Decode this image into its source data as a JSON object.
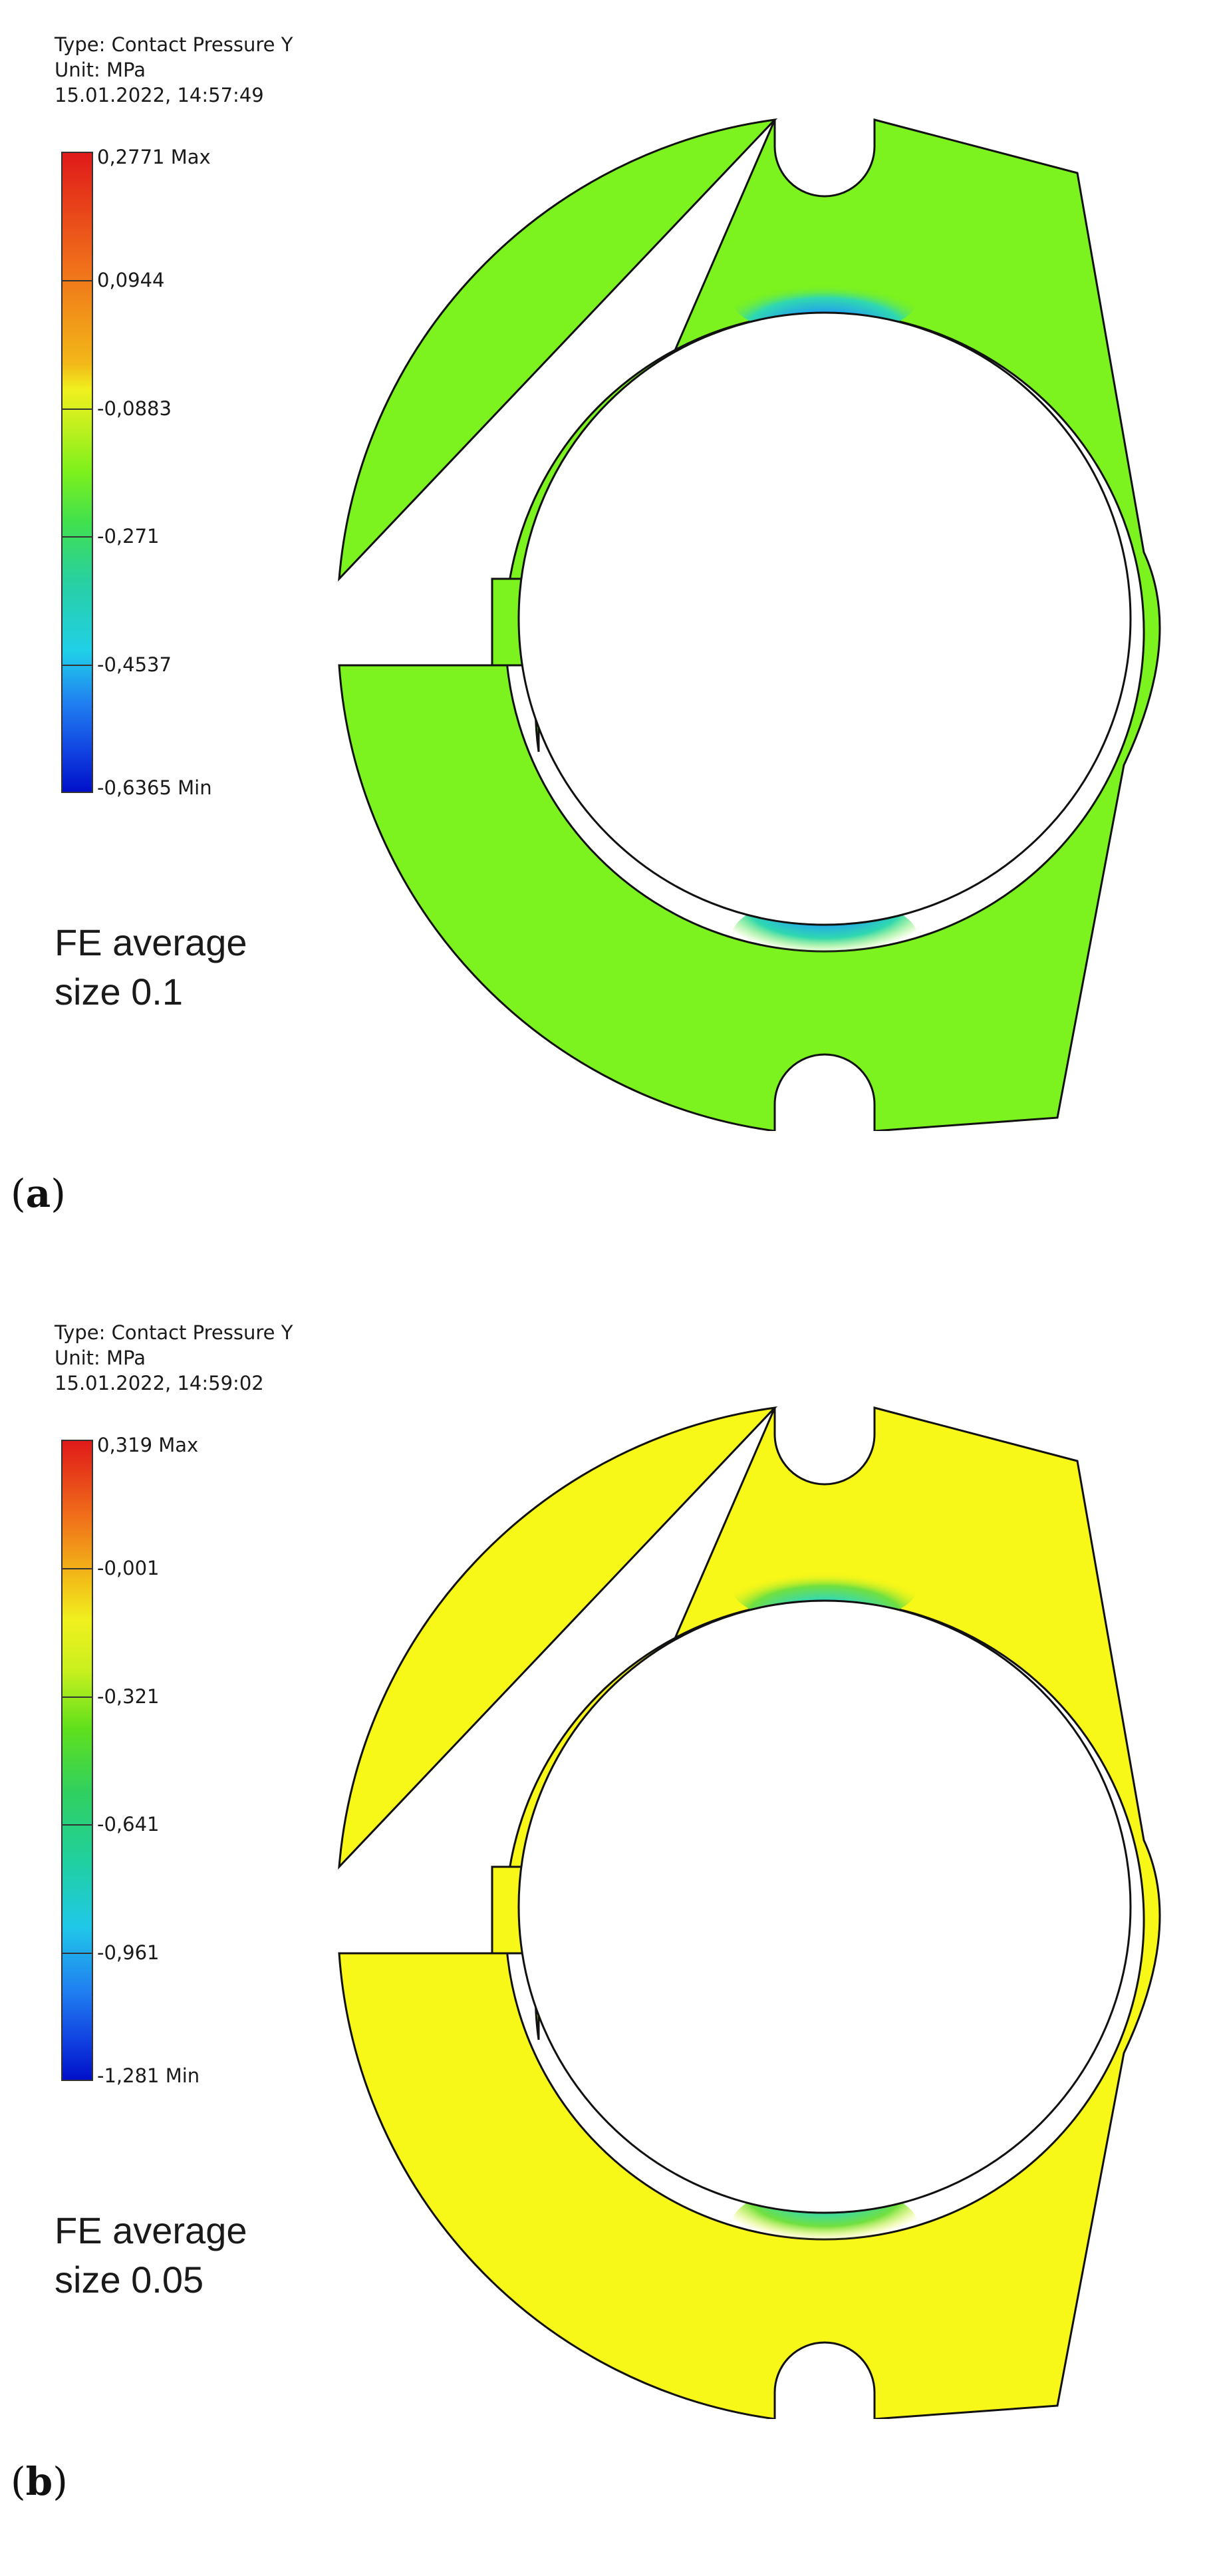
{
  "panels": [
    {
      "label_letter": "a",
      "legend": {
        "type_line": "Type: Contact Pressure Y",
        "unit_line": "Unit: MPa",
        "timestamp": "15.01.2022, 14:57:49",
        "ticks": [
          "0,2771 Max",
          "0,0944",
          "-0,0883",
          "-0,271",
          "-0,4537",
          "-0,6365 Min"
        ]
      },
      "fe_line1": "FE average",
      "fe_line2": "size 0.1",
      "body_color": "#7cf21e"
    },
    {
      "label_letter": "b",
      "legend": {
        "type_line": "Type: Contact Pressure Y",
        "unit_line": "Unit: MPa",
        "timestamp": "15.01.2022, 14:59:02",
        "ticks": [
          "0,319 Max",
          "-0,001",
          "-0,321",
          "-0,641",
          "-0,961",
          "-1,281 Min"
        ]
      },
      "fe_line1": "FE average",
      "fe_line2": "size 0.05",
      "body_color": "#f7f718"
    }
  ],
  "colors": {
    "outline": "#111111",
    "hot_spot_blue": "#1030e0",
    "hot_spot_cyan": "#30d8d0"
  }
}
